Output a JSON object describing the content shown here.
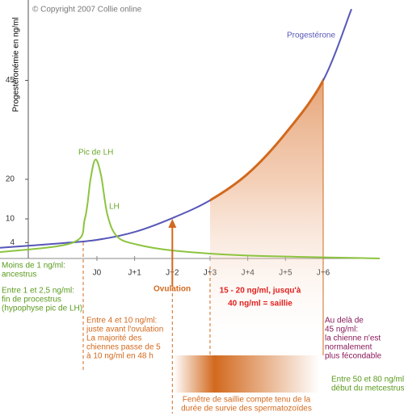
{
  "chart_data": {
    "type": "line",
    "y_label": "Progestéronémie en ng/ml",
    "xlim": [
      -2.57,
      7.5
    ],
    "ylim": [
      0,
      64
    ],
    "xticks": [
      {
        "value": 0,
        "label": "J0"
      },
      {
        "value": 1,
        "label": "J+1"
      },
      {
        "value": 2,
        "label": "J+2"
      },
      {
        "value": 3,
        "label": "J+3"
      },
      {
        "value": 4,
        "label": "J+4"
      },
      {
        "value": 5,
        "label": "J+5"
      },
      {
        "value": 6,
        "label": "J+6"
      }
    ],
    "yticks": [
      4,
      10,
      20,
      45
    ],
    "series": [
      {
        "name": "Progestérone",
        "color": "#5656b8",
        "x": [
          -2.57,
          -1,
          0,
          1,
          2,
          3,
          4,
          5,
          6,
          6.75
        ],
        "values": [
          2.7,
          3.8,
          4.7,
          6.7,
          10.2,
          14.7,
          21.4,
          31.6,
          45,
          63
        ]
      },
      {
        "name": "LH",
        "color": "#8cc43f",
        "x": [
          -2.57,
          -0.64,
          -0.32,
          -0.17,
          -0.04,
          0.11,
          0.28,
          0.54,
          1.07,
          2.03,
          3.85,
          7.5
        ],
        "values": [
          1.6,
          4,
          10,
          20,
          25,
          21,
          11,
          5.5,
          3.5,
          2,
          0.8,
          0
        ]
      }
    ],
    "window": {
      "x": [
        3,
        6
      ],
      "color": "#d2691e"
    },
    "annotations": [
      {
        "lines": [
          "© Copyright 2007 Collie online"
        ],
        "color": "#777777"
      },
      {
        "lines": [
          "Pic de LH"
        ],
        "color": "#6aa82a"
      },
      {
        "lines": [
          "Moins de 1 ng/ml:",
          "ancestrus"
        ],
        "color": "#5a9a1e"
      },
      {
        "lines": [
          "Entre 1 et 2,5 ng/ml:",
          "fin de procestrus",
          "(hypophyse pic de LH)"
        ],
        "color": "#5a9a1e"
      },
      {
        "lines": [
          "Ovulation"
        ],
        "color": "#d2691e"
      },
      {
        "lines": [
          "15 - 20 ng/ml, jusqu'à",
          "40 ng/ml = saillie"
        ],
        "color": "#e0201e"
      },
      {
        "lines": [
          "Entre 4 et 10 ng/ml:",
          "juste avant l'ovulation",
          "La majorité des",
          "chiennes passe de 5",
          "à 10 ng/ml en 48 h"
        ],
        "color": "#d2691e"
      },
      {
        "lines": [
          "Au delà de",
          "45 ng/ml:",
          "la chienne n'est",
          "normalement",
          "plus fécondable"
        ],
        "color": "#8a1a5a"
      },
      {
        "lines": [
          "Entre 50 et 80 ng/ml:",
          "début du metcestrus"
        ],
        "color": "#5a9a1e"
      },
      {
        "lines": [
          "Fenêtre de saillie compte tenu de la",
          "durée de survie des spermatozoïdes"
        ],
        "color": "#d2691e"
      }
    ]
  }
}
